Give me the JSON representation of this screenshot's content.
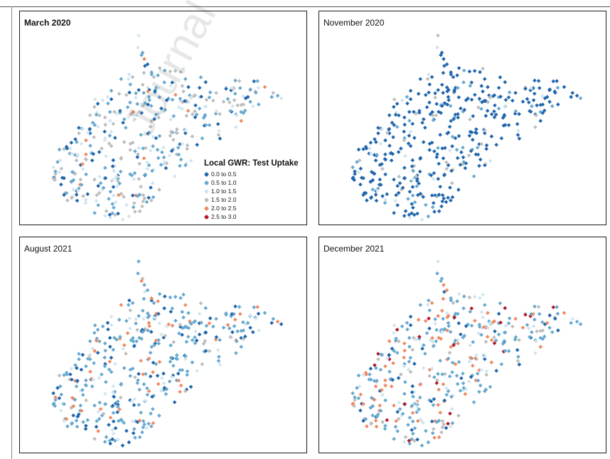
{
  "panels": [
    {
      "title": "March 2020",
      "weights": [
        0.18,
        0.3,
        0.23,
        0.26,
        0.03,
        0.0
      ]
    },
    {
      "title": "November 2020",
      "weights": [
        0.74,
        0.12,
        0.06,
        0.08,
        0.0,
        0.0
      ]
    },
    {
      "title": "August 2021",
      "weights": [
        0.2,
        0.5,
        0.12,
        0.06,
        0.12,
        0.0
      ]
    },
    {
      "title": "December 2021",
      "weights": [
        0.1,
        0.42,
        0.15,
        0.1,
        0.18,
        0.05
      ]
    }
  ],
  "legend": {
    "title": "Local GWR: Test Uptake",
    "items": [
      {
        "label": "0.0 to 0.5",
        "color": "#2166ac"
      },
      {
        "label": "0.5 to 1.0",
        "color": "#67a9cf"
      },
      {
        "label": "1.0 to 1.5",
        "color": "#d1e5f0"
      },
      {
        "label": "1.5 to 2.0",
        "color": "#bdbdbd"
      },
      {
        "label": "2.0 to 2.5",
        "color": "#ef8a62"
      },
      {
        "label": "2.5 to 3.0",
        "color": "#b2182b"
      }
    ]
  },
  "watermark": "Journal Pre-proof"
}
